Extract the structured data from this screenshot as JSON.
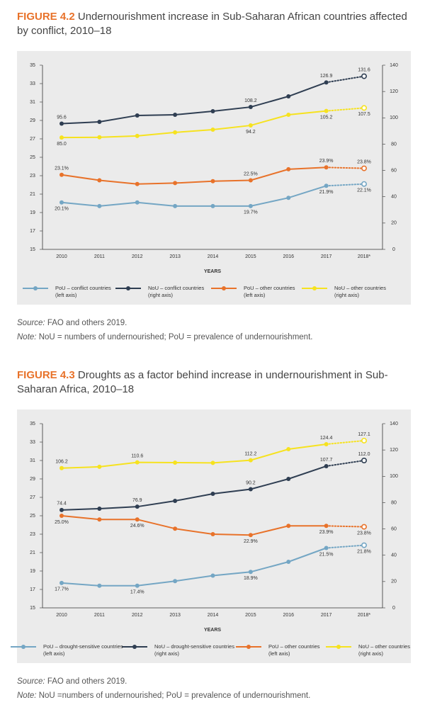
{
  "chart_data": [
    {
      "type": "line",
      "figure_label": "FIGURE 4.2",
      "title": "Undernourishment increase in Sub-Saharan African countries affected by conflict, 2010–18",
      "categories": [
        "2010",
        "2011",
        "2012",
        "2013",
        "2014",
        "2015",
        "2016",
        "2017",
        "2018*"
      ],
      "xlabel": "YEARS",
      "ylim": [
        15,
        35
      ],
      "yticks": [
        15,
        17,
        19,
        21,
        23,
        25,
        27,
        29,
        31,
        33,
        35
      ],
      "y2lim": [
        0,
        140
      ],
      "y2ticks": [
        0,
        20,
        40,
        60,
        80,
        100,
        120,
        140
      ],
      "grid": false,
      "series": [
        {
          "name": "PoU – conflict countries\n(left axis)",
          "color": "#74a6c4",
          "axis": "y",
          "values": [
            20.1,
            19.7,
            20.1,
            19.7,
            19.7,
            19.7,
            20.6,
            21.9,
            22.1
          ],
          "value_labels": [
            "20.1%",
            null,
            null,
            null,
            null,
            "19.7%",
            null,
            "21.9%",
            "22.1%"
          ]
        },
        {
          "name": "NoU – conflict countries\n(right axis)",
          "color": "#2f3e52",
          "axis": "y2",
          "values": [
            95.6,
            96.9,
            101.8,
            102.3,
            105.0,
            108.2,
            116.3,
            126.9,
            131.6
          ],
          "value_labels": [
            "95.6",
            null,
            null,
            null,
            null,
            "108.2",
            null,
            "126.9",
            "131.6"
          ]
        },
        {
          "name": "PoU – other countries\n(left axis)",
          "color": "#e8722a",
          "axis": "y",
          "values": [
            23.1,
            22.5,
            22.1,
            22.2,
            22.4,
            22.5,
            23.7,
            23.9,
            23.8
          ],
          "value_labels": [
            "23.1%",
            null,
            null,
            null,
            null,
            "22.5%",
            null,
            "23.9%",
            "23.8%"
          ]
        },
        {
          "name": "NoU – other countries\n(right axis)",
          "color": "#f6e21f",
          "axis": "y2",
          "values": [
            85.0,
            85.2,
            86.2,
            88.9,
            91.0,
            94.2,
            102.3,
            105.2,
            107.5
          ],
          "value_labels": [
            "85.0",
            null,
            null,
            null,
            null,
            "94.2",
            null,
            "105.2",
            "107.5"
          ]
        }
      ],
      "source_label": "Source:",
      "source": "FAO and others 2019.",
      "note_label": "Note:",
      "note": "NoU = numbers of undernourished; PoU = prevalence of undernourishment."
    },
    {
      "type": "line",
      "figure_label": "FIGURE 4.3",
      "title": "Droughts as a factor behind increase in undernourishment in Sub-Saharan Africa, 2010–18",
      "categories": [
        "2010",
        "2011",
        "2012",
        "2013",
        "2014",
        "2015",
        "2016",
        "2017",
        "2018*"
      ],
      "xlabel": "YEARS",
      "ylim": [
        15,
        35
      ],
      "yticks": [
        15,
        17,
        19,
        21,
        23,
        25,
        27,
        29,
        31,
        33,
        35
      ],
      "y2lim": [
        0,
        140
      ],
      "y2ticks": [
        0,
        20,
        40,
        60,
        80,
        100,
        120,
        140
      ],
      "grid": false,
      "series": [
        {
          "name": "PoU – drought-sensitive countries\n(left axis)",
          "color": "#74a6c4",
          "axis": "y",
          "values": [
            17.7,
            17.4,
            17.4,
            17.9,
            18.5,
            18.9,
            20.0,
            21.5,
            21.8
          ],
          "value_labels": [
            "17.7%",
            null,
            "17.4%",
            null,
            null,
            "18.9%",
            null,
            "21.5%",
            "21.8%"
          ]
        },
        {
          "name": "NoU – drought-sensitive countries\n(right axis)",
          "color": "#2f3e52",
          "axis": "y2",
          "values": [
            74.4,
            75.4,
            76.9,
            81.3,
            86.7,
            90.2,
            98.0,
            107.7,
            112.0
          ],
          "value_labels": [
            "74.4",
            null,
            "76.9",
            null,
            null,
            "90.2",
            null,
            "107.7",
            "112.0"
          ]
        },
        {
          "name": "PoU – other countries\n(left axis)",
          "color": "#e8722a",
          "axis": "y",
          "values": [
            25.0,
            24.6,
            24.6,
            23.6,
            23.0,
            22.9,
            23.9,
            23.9,
            23.8
          ],
          "value_labels": [
            "25.0%",
            null,
            "24.6%",
            null,
            null,
            "22.9%",
            null,
            "23.9%",
            "23.8%"
          ]
        },
        {
          "name": "NoU – other countries\n(right axis)",
          "color": "#f6e21f",
          "axis": "y2",
          "values": [
            106.2,
            107.2,
            110.6,
            110.4,
            110.2,
            112.2,
            120.6,
            124.4,
            127.1
          ],
          "value_labels": [
            "106.2",
            null,
            "110.6",
            null,
            null,
            "112.2",
            null,
            "124.4",
            "127.1"
          ]
        }
      ],
      "source_label": "Source:",
      "source": "FAO and others 2019.",
      "note_label": "Note:",
      "note": "NoU =numbers of undernourished; PoU = prevalence of undernourishment."
    }
  ]
}
